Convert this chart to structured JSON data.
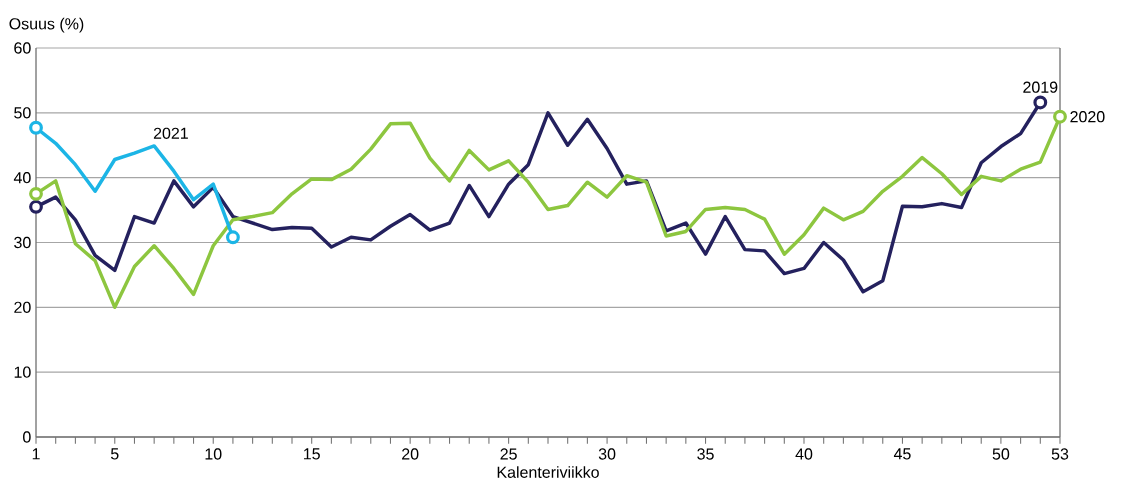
{
  "chart_data": {
    "type": "line",
    "xlabel": "Kalenteriviikko",
    "ylabel": "Osuus (%)",
    "xlim": [
      1,
      53
    ],
    "ylim": [
      0,
      60
    ],
    "yticks": [
      0,
      10,
      20,
      30,
      40,
      50,
      60
    ],
    "grid": "y",
    "xticks": [
      1,
      {
        "value": 2,
        "label": null
      },
      {
        "value": 3,
        "label": null
      },
      {
        "value": 4,
        "label": null
      },
      5,
      {
        "value": 6,
        "label": null
      },
      {
        "value": 7,
        "label": null
      },
      {
        "value": 8,
        "label": null
      },
      {
        "value": 9,
        "label": null
      },
      10,
      {
        "value": 11,
        "label": null
      },
      {
        "value": 12,
        "label": null
      },
      {
        "value": 13,
        "label": null
      },
      {
        "value": 14,
        "label": null
      },
      15,
      {
        "value": 16,
        "label": null
      },
      {
        "value": 17,
        "label": null
      },
      {
        "value": 18,
        "label": null
      },
      {
        "value": 19,
        "label": null
      },
      20,
      {
        "value": 21,
        "label": null
      },
      {
        "value": 22,
        "label": null
      },
      {
        "value": 23,
        "label": null
      },
      {
        "value": 24,
        "label": null
      },
      25,
      {
        "value": 26,
        "label": null
      },
      {
        "value": 27,
        "label": null
      },
      {
        "value": 28,
        "label": null
      },
      {
        "value": 29,
        "label": null
      },
      30,
      {
        "value": 31,
        "label": null
      },
      {
        "value": 32,
        "label": null
      },
      {
        "value": 33,
        "label": null
      },
      {
        "value": 34,
        "label": null
      },
      35,
      {
        "value": 36,
        "label": null
      },
      {
        "value": 37,
        "label": null
      },
      {
        "value": 38,
        "label": null
      },
      {
        "value": 39,
        "label": null
      },
      40,
      {
        "value": 41,
        "label": null
      },
      {
        "value": 42,
        "label": null
      },
      {
        "value": 43,
        "label": null
      },
      {
        "value": 44,
        "label": null
      },
      45,
      {
        "value": 46,
        "label": null
      },
      {
        "value": 47,
        "label": null
      },
      {
        "value": 48,
        "label": null
      },
      {
        "value": 49,
        "label": null
      },
      50,
      {
        "value": 51,
        "label": null
      },
      {
        "value": 52,
        "label": null
      },
      53
    ],
    "series": [
      {
        "name": "2019",
        "color": "#24215e",
        "x": [
          1,
          2,
          3,
          4,
          5,
          6,
          7,
          8,
          9,
          10,
          11,
          12,
          13,
          14,
          15,
          16,
          17,
          18,
          19,
          20,
          21,
          22,
          23,
          24,
          25,
          26,
          27,
          28,
          29,
          30,
          31,
          32,
          33,
          34,
          35,
          36,
          37,
          38,
          39,
          40,
          41,
          42,
          43,
          44,
          45,
          46,
          47,
          48,
          49,
          50,
          51,
          52
        ],
        "values": [
          35.5,
          37,
          33.5,
          28,
          25.7,
          34,
          33,
          39.5,
          35.5,
          38.5,
          34,
          33,
          32,
          32.3,
          32.2,
          29.3,
          30.8,
          30.4,
          32.5,
          34.3,
          31.9,
          33,
          38.8,
          34,
          39,
          42,
          50,
          45,
          49,
          44.5,
          39,
          39.5,
          31.8,
          33,
          28.2,
          34,
          28.9,
          28.7,
          25.2,
          26,
          30,
          27.3,
          22.4,
          24.1,
          35.6,
          35.5,
          36,
          35.4,
          42.3,
          44.8,
          46.8,
          51.6
        ]
      },
      {
        "name": "2020",
        "color": "#8dc63f",
        "x": [
          1,
          2,
          3,
          4,
          5,
          6,
          7,
          8,
          9,
          10,
          11,
          12,
          13,
          14,
          15,
          16,
          17,
          18,
          19,
          20,
          21,
          22,
          23,
          24,
          25,
          26,
          27,
          28,
          29,
          30,
          31,
          32,
          33,
          34,
          35,
          36,
          37,
          38,
          39,
          40,
          41,
          42,
          43,
          44,
          45,
          46,
          47,
          48,
          49,
          50,
          51,
          52,
          53
        ],
        "values": [
          37.5,
          39.5,
          29.8,
          27.2,
          20,
          26.3,
          29.5,
          26,
          22,
          29.5,
          33.5,
          34,
          34.6,
          37.5,
          39.8,
          39.7,
          41.3,
          44.4,
          48.3,
          48.4,
          43,
          39.5,
          44.2,
          41.2,
          42.6,
          39.3,
          35.1,
          35.7,
          39.3,
          37,
          40.3,
          39.3,
          31,
          31.7,
          35.1,
          35.4,
          35.1,
          33.6,
          28.2,
          31.2,
          35.3,
          33.5,
          34.8,
          37.9,
          40.2,
          43.1,
          40.6,
          37.4,
          40.2,
          39.5,
          41.3,
          42.4,
          49.4
        ]
      },
      {
        "name": "2021",
        "color": "#1cb5e6",
        "x": [
          1,
          2,
          3,
          4,
          5,
          6,
          7,
          8,
          9,
          10,
          11
        ],
        "values": [
          47.7,
          45.3,
          42,
          37.9,
          42.8,
          43.8,
          44.9,
          41,
          36.6,
          39,
          30.8
        ]
      }
    ]
  }
}
